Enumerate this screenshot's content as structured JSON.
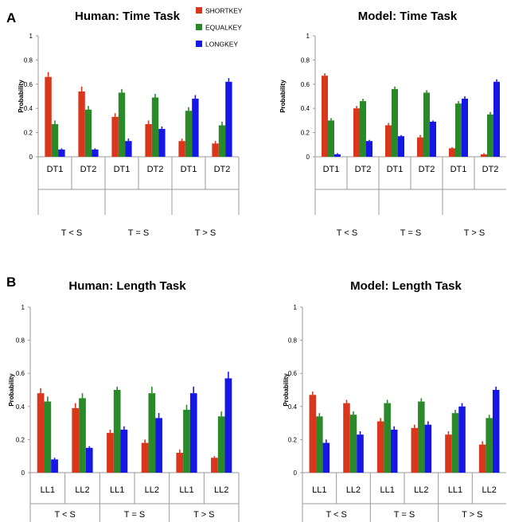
{
  "figure": {
    "panel_a": "A",
    "panel_b": "B"
  },
  "legend": {
    "items": [
      {
        "label": "SHORTKEY",
        "color": "#d9361c"
      },
      {
        "label": "EQUALKEY",
        "color": "#2a8a2a"
      },
      {
        "label": "LONGKEY",
        "color": "#1616e6"
      }
    ]
  },
  "colors": {
    "short": "#d9361c",
    "equal": "#2a8a2a",
    "long": "#1616e6",
    "error_bar": "#222222"
  },
  "chart_data": [
    {
      "type": "bar",
      "title": "Human: Time Task",
      "ylabel": "Probability",
      "ylim": [
        0,
        1
      ],
      "yticks": [
        "0",
        "0.2",
        "0.4",
        "0.6",
        "0.8",
        "1"
      ],
      "categories": [
        "DT1",
        "DT2",
        "DT1",
        "DT2",
        "DT1",
        "DT2"
      ],
      "groups": [
        "T < S",
        "T = S",
        "T > S"
      ],
      "series": [
        {
          "name": "SHORTKEY",
          "values": [
            0.66,
            0.54,
            0.33,
            0.27,
            0.13,
            0.11
          ],
          "errors": [
            0.04,
            0.04,
            0.03,
            0.03,
            0.02,
            0.02
          ]
        },
        {
          "name": "EQUALKEY",
          "values": [
            0.27,
            0.39,
            0.53,
            0.49,
            0.38,
            0.26
          ],
          "errors": [
            0.03,
            0.03,
            0.03,
            0.03,
            0.03,
            0.03
          ]
        },
        {
          "name": "LONGKEY",
          "values": [
            0.06,
            0.06,
            0.13,
            0.23,
            0.48,
            0.62
          ],
          "errors": [
            0.01,
            0.01,
            0.02,
            0.02,
            0.03,
            0.03
          ]
        }
      ]
    },
    {
      "type": "bar",
      "title": "Model: Time Task",
      "ylabel": "Probability",
      "ylim": [
        0,
        1
      ],
      "yticks": [
        "0",
        "0.2",
        "0.4",
        "0.6",
        "0.8",
        "1"
      ],
      "categories": [
        "DT1",
        "DT2",
        "DT1",
        "DT2",
        "DT1",
        "DT2"
      ],
      "groups": [
        "T < S",
        "T = S",
        "T > S"
      ],
      "series": [
        {
          "name": "SHORTKEY",
          "values": [
            0.67,
            0.4,
            0.26,
            0.16,
            0.07,
            0.02
          ],
          "errors": [
            0.02,
            0.02,
            0.02,
            0.02,
            0.01,
            0.01
          ]
        },
        {
          "name": "EQUALKEY",
          "values": [
            0.3,
            0.46,
            0.56,
            0.53,
            0.44,
            0.35
          ],
          "errors": [
            0.02,
            0.02,
            0.02,
            0.02,
            0.02,
            0.02
          ]
        },
        {
          "name": "LONGKEY",
          "values": [
            0.02,
            0.13,
            0.17,
            0.29,
            0.48,
            0.62
          ],
          "errors": [
            0.01,
            0.01,
            0.01,
            0.01,
            0.02,
            0.02
          ]
        }
      ]
    },
    {
      "type": "bar",
      "title": "Human: Length Task",
      "ylabel": "Probability",
      "ylim": [
        0,
        1
      ],
      "yticks": [
        "0",
        "0.2",
        "0.4",
        "0.6",
        "0.8",
        "1"
      ],
      "categories": [
        "LL1",
        "LL2",
        "LL1",
        "LL2",
        "LL1",
        "LL2"
      ],
      "groups": [
        "T < S",
        "T = S",
        "T > S"
      ],
      "series": [
        {
          "name": "SHORTKEY",
          "values": [
            0.48,
            0.39,
            0.24,
            0.18,
            0.12,
            0.09
          ],
          "errors": [
            0.03,
            0.03,
            0.02,
            0.02,
            0.02,
            0.01
          ]
        },
        {
          "name": "EQUALKEY",
          "values": [
            0.43,
            0.45,
            0.5,
            0.48,
            0.38,
            0.34
          ],
          "errors": [
            0.03,
            0.03,
            0.02,
            0.04,
            0.03,
            0.03
          ]
        },
        {
          "name": "LONGKEY",
          "values": [
            0.08,
            0.15,
            0.26,
            0.33,
            0.48,
            0.57
          ],
          "errors": [
            0.01,
            0.01,
            0.02,
            0.03,
            0.04,
            0.04
          ]
        }
      ]
    },
    {
      "type": "bar",
      "title": "Model: Length Task",
      "ylabel": "Probability",
      "ylim": [
        0,
        1
      ],
      "yticks": [
        "0",
        "0.2",
        "0.4",
        "0.6",
        "0.8",
        "1"
      ],
      "categories": [
        "LL1",
        "LL2",
        "LL1",
        "LL2",
        "LL1",
        "LL2"
      ],
      "groups": [
        "T < S",
        "T = S",
        "T > S"
      ],
      "series": [
        {
          "name": "SHORTKEY",
          "values": [
            0.47,
            0.42,
            0.31,
            0.27,
            0.23,
            0.17
          ],
          "errors": [
            0.02,
            0.02,
            0.02,
            0.02,
            0.02,
            0.02
          ]
        },
        {
          "name": "EQUALKEY",
          "values": [
            0.34,
            0.35,
            0.42,
            0.43,
            0.36,
            0.33
          ],
          "errors": [
            0.02,
            0.02,
            0.02,
            0.02,
            0.02,
            0.02
          ]
        },
        {
          "name": "LONGKEY",
          "values": [
            0.18,
            0.23,
            0.26,
            0.29,
            0.4,
            0.5
          ],
          "errors": [
            0.02,
            0.02,
            0.02,
            0.02,
            0.02,
            0.02
          ]
        }
      ]
    }
  ]
}
